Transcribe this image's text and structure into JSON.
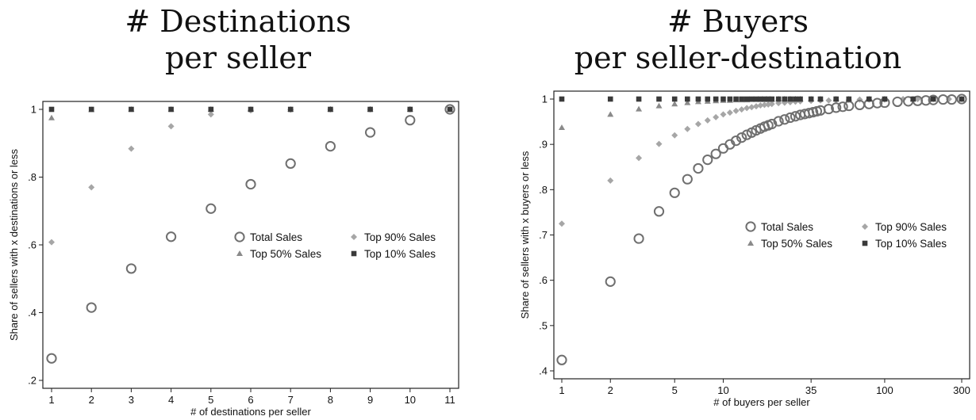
{
  "chart_data": [
    {
      "type": "scatter",
      "title": "# Destinations",
      "subtitle": "per seller",
      "xlabel": "# of destinations per seller",
      "ylabel": "Share of sellers  with x destinations or less",
      "xlim": [
        1,
        11
      ],
      "ylim": [
        0.2,
        1.0
      ],
      "xscale": "linear",
      "xticks": [
        1,
        2,
        3,
        4,
        5,
        6,
        7,
        8,
        9,
        10,
        11
      ],
      "xtick_labels": [
        "1",
        "2",
        "3",
        "4",
        "5",
        "6",
        "7",
        "8",
        "9",
        "10",
        "11"
      ],
      "yticks": [
        0.2,
        0.4,
        0.6,
        0.8,
        1.0
      ],
      "ytick_labels": [
        ".2",
        ".4",
        ".6",
        ".8",
        "1"
      ],
      "grid": false,
      "legend_position": "center-right",
      "series": [
        {
          "name": "Total Sales",
          "marker": "hollow-circle",
          "color": "#6f6f6f",
          "x": [
            1,
            2,
            3,
            4,
            5,
            6,
            7,
            8,
            9,
            10,
            11
          ],
          "y": [
            0.265,
            0.415,
            0.53,
            0.624,
            0.707,
            0.779,
            0.84,
            0.891,
            0.932,
            0.968,
            1.0
          ]
        },
        {
          "name": "Top 90% Sales",
          "marker": "diamond",
          "color": "#a6a6a6",
          "x": [
            1,
            2,
            3,
            4,
            5,
            6,
            7,
            8,
            9,
            10,
            11
          ],
          "y": [
            0.608,
            0.77,
            0.884,
            0.95,
            0.985,
            0.997,
            0.999,
            1.0,
            1.0,
            1.0,
            1.0
          ]
        },
        {
          "name": "Top 50% Sales",
          "marker": "triangle",
          "color": "#8a8a8a",
          "x": [
            1,
            2,
            3,
            4,
            5,
            6,
            7,
            8,
            9,
            10,
            11
          ],
          "y": [
            0.975,
            0.999,
            1.0,
            1.0,
            1.0,
            1.0,
            1.0,
            1.0,
            1.0,
            1.0,
            1.0
          ]
        },
        {
          "name": "Top 10% Sales",
          "marker": "square",
          "color": "#3a3a3a",
          "x": [
            1,
            2,
            3,
            4,
            5,
            6,
            7,
            8,
            9,
            10,
            11
          ],
          "y": [
            1.0,
            1.0,
            1.0,
            1.0,
            1.0,
            1.0,
            1.0,
            1.0,
            1.0,
            1.0,
            1.0
          ]
        }
      ]
    },
    {
      "type": "scatter",
      "title": "# Buyers",
      "subtitle": "per seller-destination",
      "xlabel": "# of buyers per seller",
      "ylabel": "Share of sellers  with x buyers or less",
      "xlim": [
        1,
        300
      ],
      "ylim": [
        0.4,
        1.0
      ],
      "xscale": "log",
      "xticks": [
        1,
        2,
        5,
        10,
        35,
        100,
        300
      ],
      "xtick_labels": [
        "1",
        "2",
        "5",
        "10",
        "35",
        "100",
        "300"
      ],
      "yticks": [
        0.4,
        0.5,
        0.6,
        0.7,
        0.8,
        0.9,
        1.0
      ],
      "ytick_labels": [
        ".4",
        ".5",
        ".6",
        ".7",
        ".8",
        ".9",
        "1"
      ],
      "grid": false,
      "legend_position": "center-right",
      "series": [
        {
          "name": "Total Sales",
          "marker": "hollow-circle",
          "color": "#6f6f6f",
          "x": [
            1,
            2,
            3,
            4,
            5,
            6,
            7,
            8,
            9,
            10,
            11,
            12,
            13,
            14,
            15,
            16,
            17,
            18,
            19,
            20,
            22,
            24,
            26,
            28,
            30,
            32,
            34,
            36,
            38,
            40,
            45,
            50,
            55,
            60,
            70,
            80,
            90,
            100,
            120,
            140,
            160,
            180,
            200,
            230,
            260,
            300
          ],
          "y": [
            0.424,
            0.597,
            0.692,
            0.752,
            0.793,
            0.823,
            0.847,
            0.866,
            0.879,
            0.891,
            0.9,
            0.908,
            0.915,
            0.921,
            0.926,
            0.931,
            0.935,
            0.939,
            0.942,
            0.945,
            0.951,
            0.955,
            0.959,
            0.962,
            0.965,
            0.967,
            0.969,
            0.971,
            0.973,
            0.975,
            0.978,
            0.981,
            0.983,
            0.985,
            0.987,
            0.989,
            0.991,
            0.992,
            0.994,
            0.995,
            0.996,
            0.997,
            0.998,
            0.999,
            0.999,
            1.0
          ]
        },
        {
          "name": "Top 90% Sales",
          "marker": "diamond",
          "color": "#a6a6a6",
          "x": [
            1,
            2,
            3,
            4,
            5,
            6,
            7,
            8,
            9,
            10,
            11,
            12,
            13,
            14,
            15,
            16,
            17,
            18,
            19,
            20,
            22,
            24,
            26,
            28,
            30,
            35,
            40,
            45,
            50,
            60,
            70,
            80,
            100,
            130,
            160,
            200,
            250,
            300
          ],
          "y": [
            0.725,
            0.82,
            0.87,
            0.901,
            0.92,
            0.934,
            0.945,
            0.953,
            0.96,
            0.966,
            0.97,
            0.974,
            0.977,
            0.98,
            0.982,
            0.984,
            0.986,
            0.987,
            0.988,
            0.989,
            0.991,
            0.992,
            0.993,
            0.994,
            0.995,
            0.996,
            0.997,
            0.997,
            0.998,
            0.998,
            0.999,
            0.999,
            0.999,
            1.0,
            1.0,
            1.0,
            1.0,
            1.0
          ]
        },
        {
          "name": "Top 50% Sales",
          "marker": "triangle",
          "color": "#8a8a8a",
          "x": [
            1,
            2,
            3,
            4,
            5,
            6,
            7,
            8,
            9,
            10,
            11,
            12,
            13,
            14,
            15,
            16,
            17,
            18,
            19,
            20,
            22,
            24,
            26,
            28,
            30,
            35,
            40,
            50,
            60,
            80,
            100,
            150,
            200,
            300
          ],
          "y": [
            0.937,
            0.966,
            0.978,
            0.985,
            0.989,
            0.992,
            0.994,
            0.995,
            0.996,
            0.997,
            0.997,
            0.998,
            0.998,
            0.998,
            0.999,
            0.999,
            0.999,
            0.999,
            0.999,
            0.999,
            1.0,
            1.0,
            1.0,
            1.0,
            1.0,
            1.0,
            1.0,
            1.0,
            1.0,
            1.0,
            1.0,
            1.0,
            1.0,
            1.0
          ]
        },
        {
          "name": "Top 10% Sales",
          "marker": "square",
          "color": "#3a3a3a",
          "x": [
            1,
            2,
            3,
            4,
            5,
            6,
            7,
            8,
            9,
            10,
            11,
            12,
            13,
            14,
            15,
            16,
            17,
            18,
            19,
            20,
            22,
            24,
            26,
            28,
            30,
            35,
            40,
            50,
            60,
            80,
            100,
            150,
            200,
            300
          ],
          "y": [
            1.0,
            1.0,
            1.0,
            1.0,
            1.0,
            1.0,
            1.0,
            1.0,
            1.0,
            1.0,
            1.0,
            1.0,
            1.0,
            1.0,
            1.0,
            1.0,
            1.0,
            1.0,
            1.0,
            1.0,
            1.0,
            1.0,
            1.0,
            1.0,
            1.0,
            1.0,
            1.0,
            1.0,
            1.0,
            1.0,
            1.0,
            1.0,
            1.0,
            1.0
          ]
        }
      ]
    }
  ]
}
